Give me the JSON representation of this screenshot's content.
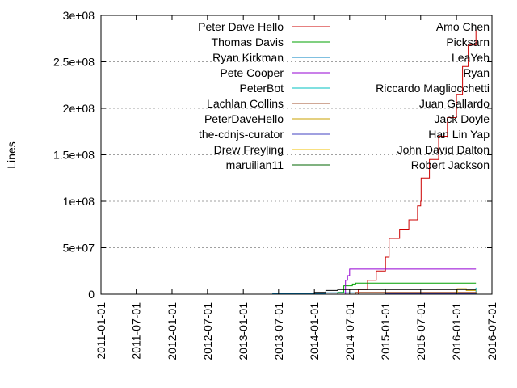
{
  "chart_data": {
    "type": "line",
    "title": "",
    "xlabel": "",
    "ylabel": "Lines",
    "x_type": "date",
    "xlim": [
      "2011-01-01",
      "2016-07-01"
    ],
    "ylim": [
      0,
      300000000
    ],
    "x_ticks": [
      "2011-01-01",
      "2011-07-01",
      "2012-01-01",
      "2012-07-01",
      "2013-01-01",
      "2013-07-01",
      "2014-01-01",
      "2014-07-01",
      "2015-01-01",
      "2015-07-01",
      "2016-01-01",
      "2016-07-01"
    ],
    "y_ticks": [
      0,
      50000000,
      100000000,
      150000000,
      200000000,
      250000000,
      300000000
    ],
    "y_tick_labels": [
      "0",
      "5e+07",
      "1e+08",
      "1.5e+08",
      "2e+08",
      "2.5e+08",
      "3e+08"
    ],
    "grid": "horizontal dotted at y ticks",
    "legend_placement": "top, two columns",
    "series": [
      {
        "name": "Peter Dave Hello",
        "color": "#cc0000",
        "points": [
          [
            "2014-06-20",
            0
          ],
          [
            "2014-08-15",
            5000000
          ],
          [
            "2014-10-01",
            15000000
          ],
          [
            "2014-11-15",
            25000000
          ],
          [
            "2015-01-01",
            40000000
          ],
          [
            "2015-01-20",
            60000000
          ],
          [
            "2015-03-15",
            70000000
          ],
          [
            "2015-05-01",
            80000000
          ],
          [
            "2015-06-15",
            95000000
          ],
          [
            "2015-07-01",
            100000000
          ],
          [
            "2015-07-03",
            125000000
          ],
          [
            "2015-08-15",
            145000000
          ],
          [
            "2015-10-01",
            170000000
          ],
          [
            "2015-11-15",
            190000000
          ],
          [
            "2016-01-01",
            215000000
          ],
          [
            "2016-02-01",
            245000000
          ],
          [
            "2016-03-01",
            268000000
          ],
          [
            "2016-04-10",
            285000000
          ]
        ]
      },
      {
        "name": "Thomas Davis",
        "color": "#00a000",
        "points": [
          [
            "2014-03-01",
            0
          ],
          [
            "2014-05-01",
            2000000
          ],
          [
            "2014-06-01",
            9000000
          ],
          [
            "2014-07-15",
            11000000
          ],
          [
            "2014-08-01",
            12000000
          ],
          [
            "2016-04-10",
            12000000
          ]
        ]
      },
      {
        "name": "Ryan Kirkman",
        "color": "#0080c0",
        "points": [
          [
            "2013-01-15",
            0
          ],
          [
            "2013-06-01",
            500000
          ],
          [
            "2014-03-01",
            1500000
          ],
          [
            "2016-04-10",
            2000000
          ]
        ]
      },
      {
        "name": "Pete Cooper",
        "color": "#9400d3",
        "points": [
          [
            "2014-06-01",
            0
          ],
          [
            "2014-06-10",
            15000000
          ],
          [
            "2014-06-20",
            20000000
          ],
          [
            "2014-07-01",
            27000000
          ],
          [
            "2016-04-10",
            27000000
          ]
        ]
      },
      {
        "name": "PeterBot",
        "color": "#00c0c0",
        "points": [
          [
            "2014-09-01",
            0
          ],
          [
            "2016-03-01",
            500000
          ],
          [
            "2016-03-20",
            1500000
          ],
          [
            "2016-04-10",
            7000000
          ]
        ]
      },
      {
        "name": "Lachlan Collins",
        "color": "#a0522d",
        "points": [
          [
            "2014-04-01",
            0
          ],
          [
            "2014-08-01",
            2000000
          ],
          [
            "2016-04-10",
            3000000
          ]
        ]
      },
      {
        "name": "PeterDaveHello",
        "color": "#c8a000",
        "points": [
          [
            "2015-01-01",
            0
          ],
          [
            "2016-01-01",
            1000000
          ],
          [
            "2016-01-05",
            6000000
          ],
          [
            "2016-02-15",
            6000000
          ],
          [
            "2016-02-20",
            4000000
          ],
          [
            "2016-04-10",
            4000000
          ]
        ]
      },
      {
        "name": "the-cdnjs-curator",
        "color": "#4040c0",
        "points": [
          [
            "2014-01-01",
            0
          ],
          [
            "2015-01-01",
            500000
          ],
          [
            "2016-04-10",
            1000000
          ]
        ]
      },
      {
        "name": "Drew Freyling",
        "color": "#f0c000",
        "points": [
          [
            "2015-06-01",
            0
          ],
          [
            "2016-04-10",
            500000
          ]
        ]
      },
      {
        "name": "maruilian11",
        "color": "#006400",
        "points": [
          [
            "2014-05-01",
            0
          ],
          [
            "2016-04-10",
            800000
          ]
        ]
      },
      {
        "name": "Amo Chen",
        "color": "#000000",
        "points": [
          [
            "2013-09-01",
            0
          ],
          [
            "2014-01-01",
            2000000
          ],
          [
            "2014-03-01",
            4000000
          ],
          [
            "2014-05-01",
            5000000
          ],
          [
            "2016-04-10",
            5000000
          ]
        ]
      },
      {
        "name": "Picksarn",
        "color": "#000000",
        "points": []
      },
      {
        "name": "LeaYeh",
        "color": "#000000",
        "points": []
      },
      {
        "name": "Ryan",
        "color": "#000000",
        "points": []
      },
      {
        "name": "Riccardo Magliocchetti",
        "color": "#000000",
        "points": []
      },
      {
        "name": "Juan Gallardo",
        "color": "#000000",
        "points": []
      },
      {
        "name": "Jack Doyle",
        "color": "#000000",
        "points": []
      },
      {
        "name": "Han Lin Yap",
        "color": "#000000",
        "points": []
      },
      {
        "name": "John David Dalton",
        "color": "#000000",
        "points": []
      },
      {
        "name": "Robert Jackson",
        "color": "#000000",
        "points": []
      }
    ]
  }
}
